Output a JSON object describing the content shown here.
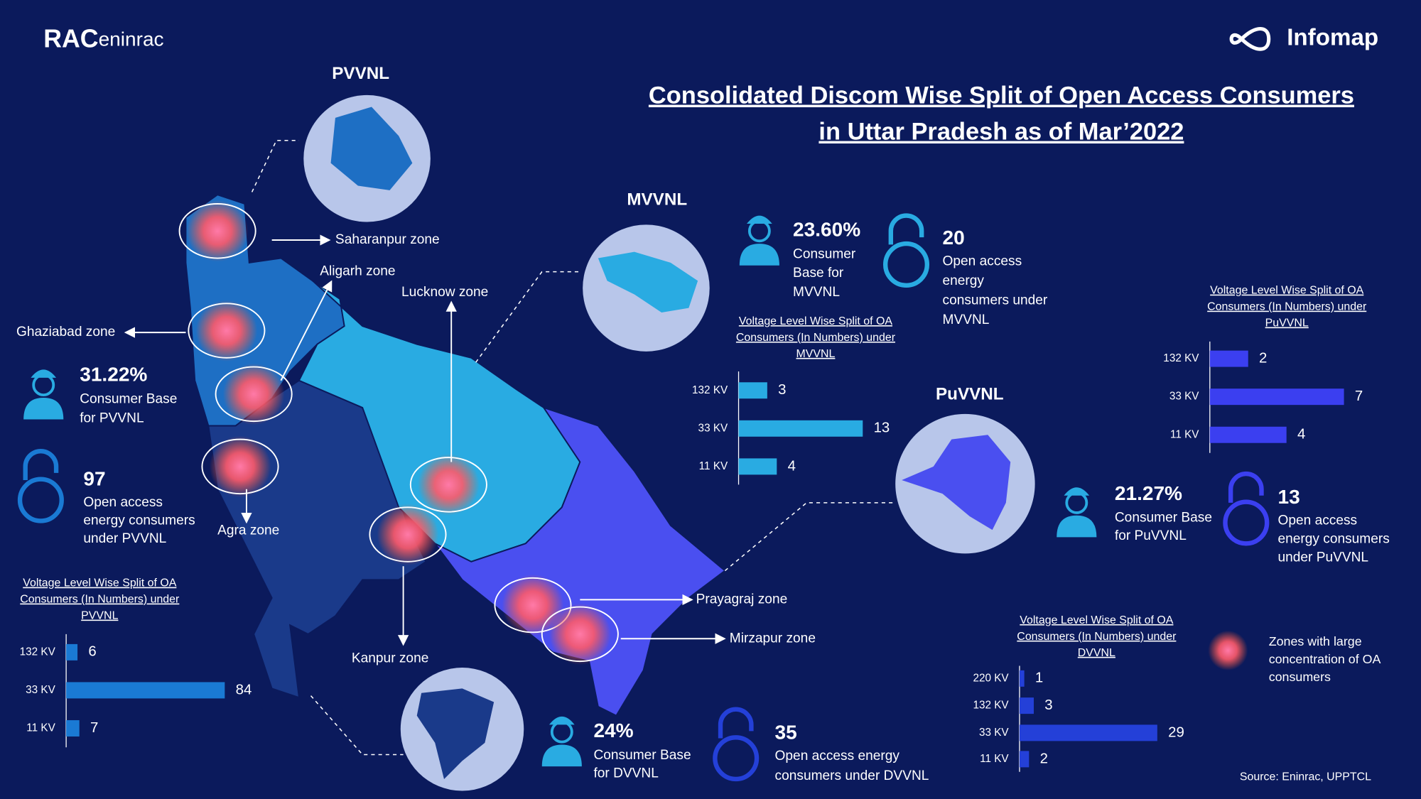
{
  "header": {
    "logo_mark": "RAC",
    "logo_name": "eninrac",
    "brand": "Infomap",
    "title": [
      "Consolidated Discom Wise Split of Open Access Consumers",
      "in Uttar Pradesh as of Mar’2022"
    ]
  },
  "discoms": [
    {
      "name": "PVVNL",
      "share": "31.22%",
      "share_label": [
        "Consumer Base",
        "for PVVNL"
      ],
      "oa_count": "97",
      "oa_label": [
        "Open access",
        "energy consumers",
        "under PVVNL"
      ]
    },
    {
      "name": "MVVNL",
      "share": "23.60%",
      "share_label": [
        "Consumer",
        "Base for",
        "MVVNL"
      ],
      "oa_count": "20",
      "oa_label": [
        "Open access",
        "energy",
        "consumers under",
        "MVVNL"
      ]
    },
    {
      "name": "PuVVNL",
      "share": "21.27%",
      "share_label": [
        "Consumer Base",
        "for PuVVNL"
      ],
      "oa_count": "13",
      "oa_label": [
        "Open access",
        "energy consumers",
        "under PuVVNL"
      ]
    },
    {
      "share": "24%",
      "share_label": [
        "Consumer Base",
        "for DVVNL"
      ],
      "oa_count": "35",
      "oa_label": [
        "Open access energy",
        "consumers under DVVNL"
      ]
    }
  ],
  "zones": [
    "Saharanpur zone",
    "Aligarh zone",
    "Ghaziabad zone",
    "Lucknow zone",
    "Agra zone",
    "Kanpur zone",
    "Prayagraj zone",
    "Mirzapur  zone"
  ],
  "legend": [
    "Zones with large",
    "concentration of OA",
    "consumers"
  ],
  "source": "Source: Eninrac, UPPTCL",
  "chart_data": [
    {
      "type": "bar",
      "title": [
        "Voltage Level Wise Split of OA",
        "Consumers (In Numbers) under",
        "PVVNL"
      ],
      "categories": [
        "132 KV",
        "33 KV",
        "11 KV"
      ],
      "values": [
        6,
        84,
        7
      ],
      "color": "#1a7ad4"
    },
    {
      "type": "bar",
      "title": [
        "Voltage Level Wise Split of OA",
        "Consumers (In Numbers) under",
        "MVVNL"
      ],
      "categories": [
        "132 KV",
        "33 KV",
        "11 KV"
      ],
      "values": [
        3,
        13,
        4
      ],
      "color": "#29abe2"
    },
    {
      "type": "bar",
      "title": [
        "Voltage Level Wise Split of OA",
        "Consumers (In Numbers) under",
        "PuVVNL"
      ],
      "categories": [
        "132 KV",
        "33 KV",
        "11 KV"
      ],
      "values": [
        2,
        7,
        4
      ],
      "color": "#3b3ff0"
    },
    {
      "type": "bar",
      "title": [
        "Voltage Level Wise Split of OA",
        "Consumers (In Numbers) under",
        "DVVNL"
      ],
      "categories": [
        "220 KV",
        "132 KV",
        "33 KV",
        "11 KV"
      ],
      "values": [
        1,
        3,
        29,
        2
      ],
      "color": "#2440d8"
    }
  ]
}
